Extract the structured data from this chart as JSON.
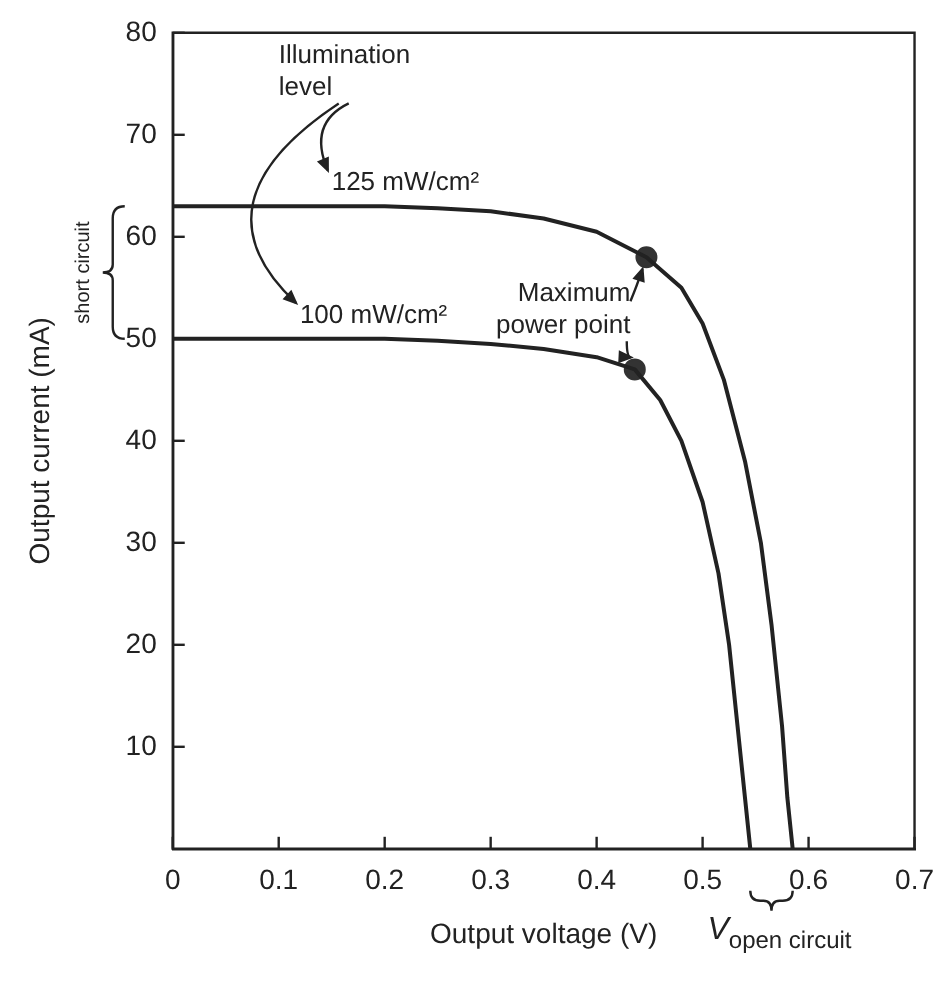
{
  "chart_data": {
    "type": "line",
    "xlabel": "Output voltage (V)",
    "ylabel": "Output current (mA)",
    "xlim": [
      0,
      0.7
    ],
    "xticks": [
      0,
      0.1,
      0.2,
      0.3,
      0.4,
      0.5,
      0.6,
      0.7
    ],
    "ylim": [
      0,
      80
    ],
    "yticks": [
      10,
      20,
      30,
      40,
      50,
      60,
      70,
      80
    ],
    "grid": false,
    "legend": false,
    "line_style": "solid",
    "series": [
      {
        "color": "#222222",
        "marker": "none",
        "x": [
          0,
          0.1,
          0.2,
          0.25,
          0.3,
          0.35,
          0.4,
          0.447,
          0.48,
          0.5,
          0.52,
          0.54,
          0.555,
          0.565,
          0.575,
          0.58,
          0.585
        ],
        "values": [
          63,
          63,
          63,
          62.8,
          62.5,
          61.8,
          60.5,
          58,
          55,
          51.5,
          46,
          38,
          30,
          22,
          12,
          5,
          0
        ]
      },
      {
        "color": "#222222",
        "marker": "none",
        "x": [
          0,
          0.1,
          0.2,
          0.25,
          0.3,
          0.35,
          0.4,
          0.436,
          0.46,
          0.48,
          0.5,
          0.515,
          0.525,
          0.533,
          0.54,
          0.545
        ],
        "values": [
          50,
          50,
          50,
          49.8,
          49.5,
          49,
          48.2,
          47,
          44,
          40,
          34,
          27,
          20,
          12,
          5,
          0
        ]
      },
      {
        "type": "scatter",
        "color": "#333333",
        "marker": "circle",
        "x": [
          0.447,
          0.436
        ],
        "values": [
          58,
          47
        ]
      }
    ],
    "annotations": [
      "Illumination level",
      {
        "text": "125 mW/cm²",
        "x": 0.15,
        "y": 63
      },
      {
        "text": "100 mW/cm²",
        "x": 0.12,
        "y": 50
      },
      {
        "text": "Maximum power point",
        "x": 0.447,
        "y": 58
      },
      "short circuit",
      "V$_{open circuit}$"
    ]
  }
}
